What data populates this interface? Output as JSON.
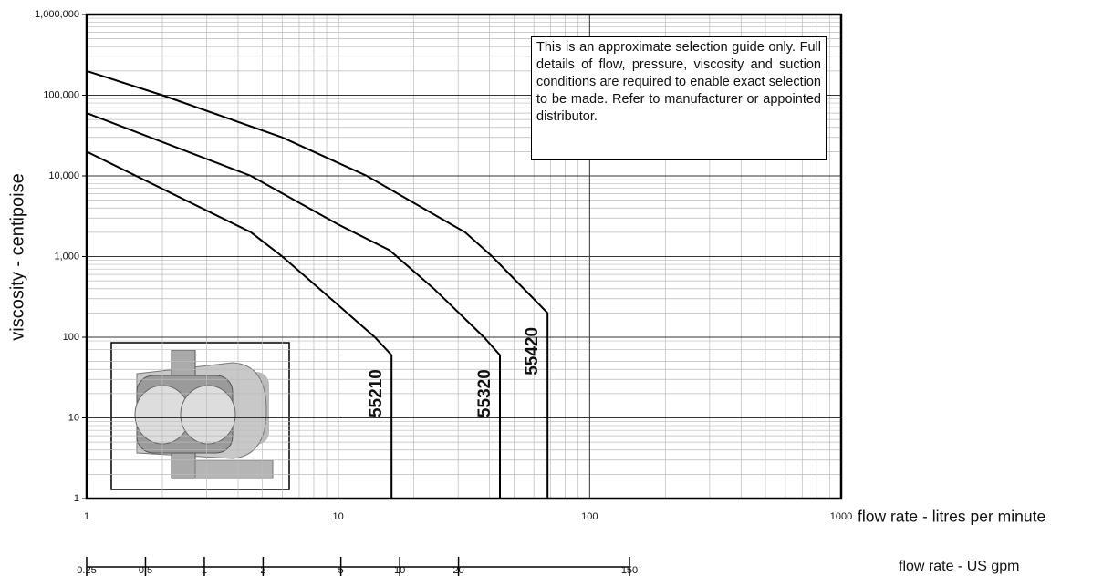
{
  "chart_data": {
    "type": "line",
    "note": "This is an approximate selection guide only.  Full details of flow, pressure, viscosity and suction conditions are required to enable exact selection to be made. Refer to manufacturer or appointed distributor.",
    "xlabel": "flow rate - litres per minute",
    "x2label": "flow rate - US gpm",
    "ylabel": "viscosity - centipoise",
    "xlog": true,
    "ylog": true,
    "grid": true,
    "xlim": [
      1,
      1000
    ],
    "xticks": [
      1,
      10,
      100,
      1000
    ],
    "x2lim": [
      0.25,
      150
    ],
    "x2ticks": [
      0.25,
      0.5,
      1,
      2,
      5,
      10,
      20,
      150
    ],
    "ylim": [
      1,
      1000000
    ],
    "yticks": [
      1,
      10,
      100,
      {
        "value": 1000,
        "label": "1,000"
      },
      {
        "value": 10000,
        "label": "10,000"
      },
      {
        "value": 100000,
        "label": "100,000"
      },
      {
        "value": 1000000,
        "label": "1,000,000"
      }
    ],
    "series": [
      {
        "name": "55210",
        "color": "#000000",
        "x": [
          1,
          4.5,
          6,
          10,
          14,
          16.3,
          16.3
        ],
        "values": [
          20000,
          2000,
          1000,
          250,
          100,
          60,
          1
        ]
      },
      {
        "name": "55320",
        "color": "#000000",
        "x": [
          1,
          4.5,
          9,
          10,
          16,
          24,
          38,
          44,
          44
        ],
        "values": [
          60000,
          10000,
          3000,
          2500,
          1200,
          400,
          100,
          60,
          1
        ]
      },
      {
        "name": "55420",
        "color": "#000000",
        "x": [
          1,
          2,
          6,
          13,
          25,
          32,
          41,
          68,
          68
        ],
        "values": [
          200000,
          100000,
          30000,
          10000,
          3100,
          2000,
          1000,
          200,
          1
        ]
      }
    ]
  }
}
